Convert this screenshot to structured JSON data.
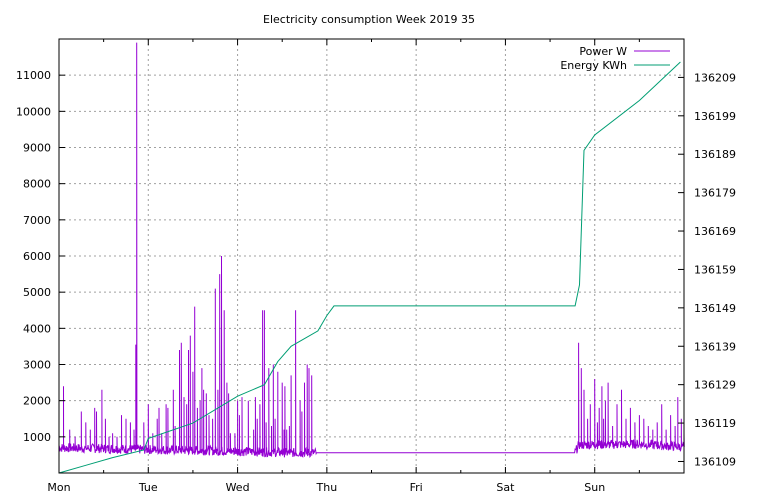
{
  "chart_data": {
    "type": "line",
    "title": "Electricity consumption Week 2019 35",
    "x_axis": {
      "unit": "days",
      "range": [
        0,
        7
      ],
      "tick_values": [
        0,
        1,
        2,
        3,
        4,
        5,
        6
      ],
      "tick_labels": [
        "Mon",
        "Tue",
        "Wed",
        "Thu",
        "Fri",
        "Sat",
        "Sun"
      ]
    },
    "y_axis_left": {
      "range": [
        0,
        12000
      ],
      "ticks": [
        1000,
        2000,
        3000,
        4000,
        5000,
        6000,
        7000,
        8000,
        9000,
        10000,
        11000
      ]
    },
    "y_axis_right": {
      "range": [
        136106,
        136219
      ],
      "ticks": [
        136109,
        136119,
        136129,
        136139,
        136149,
        136159,
        136169,
        136179,
        136189,
        136199,
        136209
      ]
    },
    "grid": true,
    "legend_position": "top-right",
    "series": [
      {
        "name": "Power W",
        "axis": "left",
        "color": "#9400d3",
        "baseline": [
          [
            0,
            700
          ],
          [
            0.98,
            650
          ],
          [
            1.6,
            620
          ],
          [
            2.3,
            580
          ],
          [
            2.6,
            560
          ],
          [
            5.78,
            560
          ],
          [
            5.82,
            780
          ],
          [
            6.5,
            800
          ],
          [
            7,
            720
          ]
        ],
        "spikes": [
          [
            0.05,
            2400
          ],
          [
            0.12,
            1200
          ],
          [
            0.18,
            1000
          ],
          [
            0.25,
            1700
          ],
          [
            0.3,
            1400
          ],
          [
            0.35,
            1200
          ],
          [
            0.4,
            1800
          ],
          [
            0.42,
            1700
          ],
          [
            0.48,
            2300
          ],
          [
            0.52,
            1500
          ],
          [
            0.56,
            1000
          ],
          [
            0.6,
            1100
          ],
          [
            0.65,
            1000
          ],
          [
            0.7,
            1600
          ],
          [
            0.75,
            1500
          ],
          [
            0.8,
            1400
          ],
          [
            0.84,
            1200
          ],
          [
            0.86,
            3550
          ],
          [
            0.87,
            11900
          ],
          [
            0.95,
            1400
          ],
          [
            1.0,
            1900
          ],
          [
            1.05,
            1100
          ],
          [
            1.1,
            1500
          ],
          [
            1.12,
            1800
          ],
          [
            1.15,
            1100
          ],
          [
            1.2,
            1900
          ],
          [
            1.22,
            1800
          ],
          [
            1.28,
            2300
          ],
          [
            1.3,
            1300
          ],
          [
            1.35,
            3400
          ],
          [
            1.37,
            3600
          ],
          [
            1.4,
            2100
          ],
          [
            1.43,
            1900
          ],
          [
            1.45,
            3400
          ],
          [
            1.47,
            3800
          ],
          [
            1.5,
            2800
          ],
          [
            1.52,
            4600
          ],
          [
            1.55,
            1800
          ],
          [
            1.58,
            2000
          ],
          [
            1.6,
            2900
          ],
          [
            1.62,
            2300
          ],
          [
            1.65,
            2200
          ],
          [
            1.68,
            1600
          ],
          [
            1.72,
            1500
          ],
          [
            1.78,
            2300
          ],
          [
            1.82,
            1800
          ],
          [
            1.88,
            1600
          ],
          [
            1.92,
            1100
          ],
          [
            1.97,
            1100
          ],
          [
            2.02,
            1600
          ],
          [
            2.05,
            1300
          ],
          [
            2.12,
            1400
          ],
          [
            2.18,
            1200
          ],
          [
            2.22,
            1500
          ],
          [
            2.25,
            1900
          ],
          [
            2.28,
            1700
          ],
          [
            2.3,
            1600
          ],
          [
            2.32,
            1400
          ],
          [
            2.35,
            1800
          ],
          [
            2.38,
            1300
          ],
          [
            2.42,
            1500
          ],
          [
            2.45,
            1400
          ],
          [
            2.5,
            1700
          ],
          [
            2.52,
            1200
          ],
          [
            2.55,
            1200
          ],
          [
            2.58,
            1300
          ],
          [
            1.75,
            5100
          ],
          [
            1.8,
            5500
          ],
          [
            1.82,
            6000
          ],
          [
            1.85,
            4500
          ],
          [
            1.88,
            2500
          ],
          [
            1.9,
            2200
          ],
          [
            2.0,
            2000
          ],
          [
            2.05,
            2100
          ],
          [
            2.12,
            2000
          ],
          [
            2.2,
            2100
          ],
          [
            2.25,
            1800
          ],
          [
            2.28,
            4500
          ],
          [
            2.3,
            4500
          ],
          [
            2.35,
            2900
          ],
          [
            2.4,
            3000
          ],
          [
            2.45,
            2800
          ],
          [
            2.5,
            2500
          ],
          [
            2.53,
            2400
          ],
          [
            2.6,
            2700
          ],
          [
            2.65,
            4500
          ],
          [
            2.7,
            2000
          ],
          [
            2.72,
            1700
          ],
          [
            2.75,
            2500
          ],
          [
            2.78,
            3000
          ],
          [
            2.8,
            2900
          ],
          [
            2.83,
            2700
          ],
          [
            5.82,
            3600
          ],
          [
            5.85,
            2900
          ],
          [
            5.88,
            2300
          ],
          [
            5.92,
            1500
          ],
          [
            5.95,
            1900
          ],
          [
            6.0,
            2600
          ],
          [
            6.03,
            1400
          ],
          [
            6.05,
            1800
          ],
          [
            6.08,
            2400
          ],
          [
            6.1,
            1500
          ],
          [
            6.12,
            2000
          ],
          [
            6.15,
            2500
          ],
          [
            6.2,
            1300
          ],
          [
            6.25,
            1900
          ],
          [
            6.3,
            2300
          ],
          [
            6.35,
            1500
          ],
          [
            6.4,
            1800
          ],
          [
            6.45,
            1400
          ],
          [
            6.5,
            1600
          ],
          [
            6.55,
            1500
          ],
          [
            6.6,
            1300
          ],
          [
            6.65,
            1200
          ],
          [
            6.7,
            1400
          ],
          [
            6.75,
            1900
          ],
          [
            6.8,
            1200
          ],
          [
            6.85,
            1600
          ],
          [
            6.9,
            1300
          ],
          [
            6.93,
            2100
          ],
          [
            6.97,
            1500
          ],
          [
            7.0,
            1100
          ]
        ]
      },
      {
        "name": "Energy KWh",
        "axis": "right",
        "color": "#009e73",
        "points": [
          [
            0,
            136106
          ],
          [
            0.3,
            136108
          ],
          [
            0.6,
            136110
          ],
          [
            0.95,
            136112
          ],
          [
            1.0,
            136115
          ],
          [
            1.5,
            136119
          ],
          [
            2.0,
            136126
          ],
          [
            2.3,
            136129
          ],
          [
            2.45,
            136135
          ],
          [
            2.6,
            136139
          ],
          [
            2.9,
            136143
          ],
          [
            3.0,
            136147
          ],
          [
            3.08,
            136149.5
          ],
          [
            5.78,
            136149.5
          ],
          [
            5.83,
            136155
          ],
          [
            5.88,
            136190
          ],
          [
            6.0,
            136194
          ],
          [
            6.5,
            136203
          ],
          [
            6.96,
            136213
          ]
        ]
      }
    ]
  }
}
